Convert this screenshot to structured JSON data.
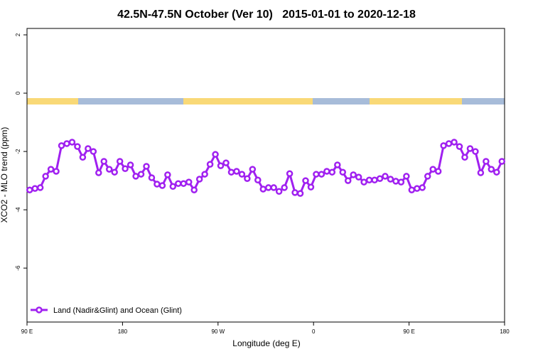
{
  "chart_data": {
    "type": "line",
    "title": "42.5N-47.5N October (Ver 10)   2015-01-01 to 2020-12-18",
    "x_label": "Longitude (deg E)",
    "y_label": "XCO2 - MLO trend (ppm)",
    "xlim": [
      90,
      540
    ],
    "xticks": [
      {
        "value": 90,
        "label": "90 E"
      },
      180,
      {
        "value": 270,
        "label": "90 W"
      },
      {
        "value": 360,
        "label": "0"
      },
      {
        "value": 450,
        "label": "90 E"
      },
      {
        "value": 540,
        "label": "180"
      }
    ],
    "ylim": [
      -7.85,
      2.22
    ],
    "yticks": [
      2,
      0,
      -2,
      -4,
      -6
    ],
    "legend": "bottom-left",
    "x": [
      92.5,
      97.5,
      102.5,
      107.5,
      112.5,
      117.5,
      122.5,
      127.5,
      132.5,
      137.5,
      142.5,
      147.5,
      152.5,
      157.5,
      162.5,
      167.5,
      172.5,
      177.5,
      182.5,
      187.5,
      192.5,
      197.5,
      202.5,
      207.5,
      212.5,
      217.5,
      222.5,
      227.5,
      232.5,
      237.5,
      242.5,
      247.5,
      252.5,
      257.5,
      262.5,
      267.5,
      272.5,
      277.5,
      282.5,
      287.5,
      292.5,
      297.5,
      302.5,
      307.5,
      312.5,
      317.5,
      322.5,
      327.5,
      332.5,
      337.5,
      342.5,
      347.5,
      352.5,
      357.5,
      362.5,
      367.5,
      372.5,
      377.5,
      382.5,
      387.5,
      392.5,
      397.5,
      402.5,
      407.5,
      412.5,
      417.5,
      422.5,
      427.5,
      432.5,
      437.5,
      442.5,
      447.5,
      452.5,
      457.5,
      462.5,
      467.5,
      472.5,
      477.5,
      482.5,
      487.5,
      492.5,
      497.5,
      502.5,
      507.5,
      512.5,
      517.5,
      522.5,
      527.5,
      532.5,
      537.5
    ],
    "series": [
      {
        "name": "Land (Nadir&Glint) and Ocean (Glint)",
        "color": "#a020f0",
        "values": [
          -3.32,
          -3.27,
          -3.24,
          -2.85,
          -2.61,
          -2.68,
          -1.8,
          -1.73,
          -1.68,
          -1.83,
          -2.2,
          -1.9,
          -2.0,
          -2.73,
          -2.34,
          -2.61,
          -2.71,
          -2.34,
          -2.59,
          -2.46,
          -2.85,
          -2.78,
          -2.51,
          -2.9,
          -3.12,
          -3.17,
          -2.8,
          -3.2,
          -3.1,
          -3.1,
          -3.05,
          -3.32,
          -2.95,
          -2.78,
          -2.44,
          -2.1,
          -2.49,
          -2.39,
          -2.71,
          -2.68,
          -2.78,
          -2.93,
          -2.61,
          -2.98,
          -3.29,
          -3.24,
          -3.24,
          -3.37,
          -3.24,
          -2.76,
          -3.41,
          -3.44,
          -3.0,
          -3.22,
          -2.78,
          -2.78,
          -2.68,
          -2.71,
          -2.46,
          -2.71,
          -3.0,
          -2.8,
          -2.88,
          -3.05,
          -2.98,
          -2.98,
          -2.93,
          -2.85,
          -2.95,
          -3.02,
          -3.05,
          -2.85,
          -3.32,
          -3.27,
          -3.24,
          -2.85,
          -2.61,
          -2.68,
          -1.8,
          -1.73,
          -1.68,
          -1.83,
          -2.2,
          -1.9,
          -2.0,
          -2.73,
          -2.34,
          -2.61,
          -2.71,
          -2.34
        ]
      }
    ]
  }
}
